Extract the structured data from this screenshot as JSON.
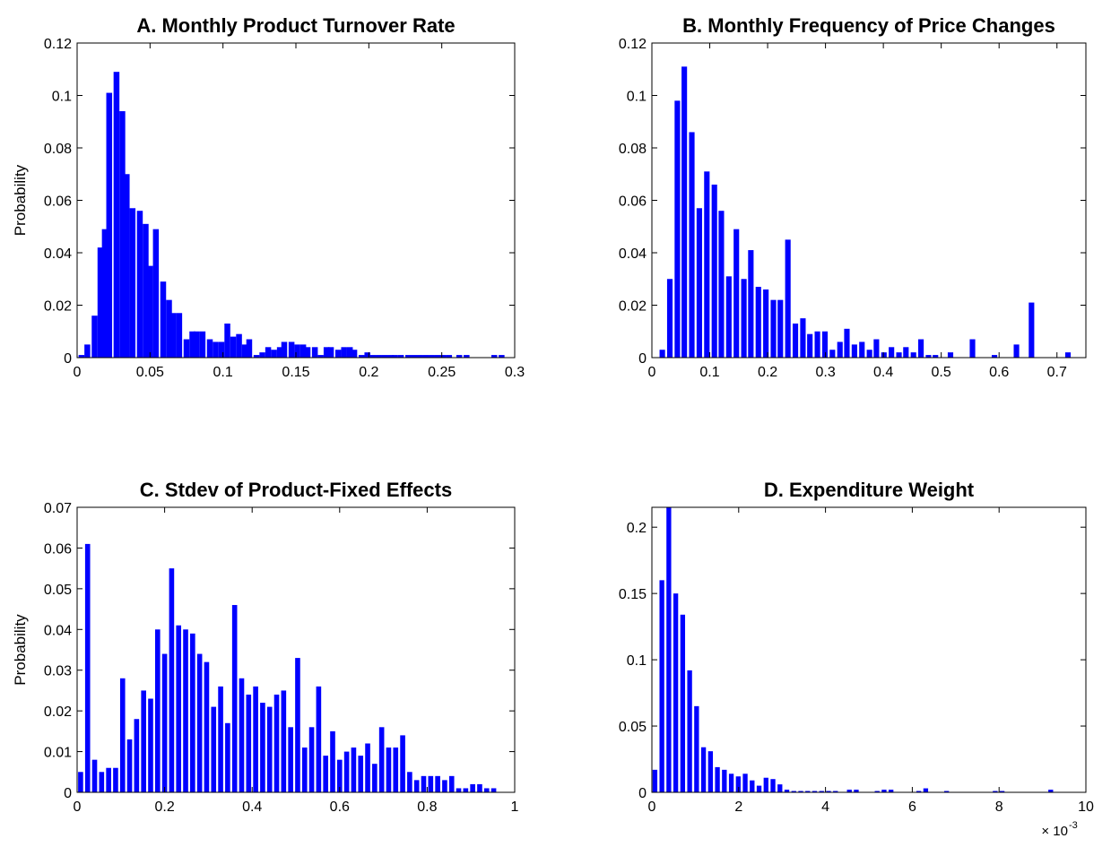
{
  "chart_data": [
    {
      "type": "bar",
      "title": "A. Monthly Product Turnover Rate",
      "ylabel": "Probability",
      "xlim": [
        0,
        0.3
      ],
      "ylim": [
        0,
        0.12
      ],
      "xticks": [
        0,
        0.05,
        0.1,
        0.15,
        0.2,
        0.25,
        0.3
      ],
      "xtick_labels": [
        "0",
        "0.05",
        "0.1",
        "0.15",
        "0.2",
        "0.25",
        "0.3"
      ],
      "yticks": [
        0,
        0.02,
        0.04,
        0.06,
        0.08,
        0.1,
        0.12
      ],
      "ytick_labels": [
        "0",
        "0.02",
        "0.04",
        "0.06",
        "0.08",
        "0.1",
        "0.12"
      ],
      "bin_width": 0.004,
      "color": "#0000ff",
      "x": [
        0.003,
        0.007,
        0.012,
        0.016,
        0.019,
        0.022,
        0.027,
        0.031,
        0.034,
        0.038,
        0.043,
        0.047,
        0.05,
        0.054,
        0.059,
        0.063,
        0.066,
        0.07,
        0.075,
        0.079,
        0.082,
        0.086,
        0.091,
        0.095,
        0.099,
        0.103,
        0.107,
        0.111,
        0.115,
        0.118,
        0.123,
        0.127,
        0.131,
        0.135,
        0.139,
        0.142,
        0.147,
        0.151,
        0.155,
        0.158,
        0.163,
        0.167,
        0.171,
        0.174,
        0.179,
        0.183,
        0.187,
        0.19,
        0.195,
        0.199,
        0.203,
        0.207,
        0.211,
        0.215,
        0.218,
        0.222,
        0.227,
        0.231,
        0.235,
        0.239,
        0.243,
        0.247,
        0.251,
        0.255,
        0.262,
        0.267,
        0.286,
        0.291
      ],
      "values": [
        0.001,
        0.005,
        0.016,
        0.042,
        0.049,
        0.101,
        0.109,
        0.094,
        0.07,
        0.057,
        0.056,
        0.051,
        0.035,
        0.049,
        0.029,
        0.022,
        0.017,
        0.017,
        0.007,
        0.01,
        0.01,
        0.01,
        0.007,
        0.006,
        0.006,
        0.013,
        0.008,
        0.009,
        0.005,
        0.007,
        0.001,
        0.002,
        0.004,
        0.003,
        0.004,
        0.006,
        0.006,
        0.005,
        0.005,
        0.004,
        0.004,
        0.001,
        0.004,
        0.004,
        0.003,
        0.004,
        0.004,
        0.003,
        0.001,
        0.002,
        0.001,
        0.001,
        0.001,
        0.001,
        0.001,
        0.001,
        0.001,
        0.001,
        0.001,
        0.001,
        0.001,
        0.001,
        0.001,
        0.001,
        0.001,
        0.001,
        0.001,
        0.001
      ]
    },
    {
      "type": "bar",
      "title": "B. Monthly Frequency of Price Changes",
      "xlim": [
        0,
        0.75
      ],
      "ylim": [
        0,
        0.12
      ],
      "xticks": [
        0,
        0.1,
        0.2,
        0.3,
        0.4,
        0.5,
        0.6,
        0.7
      ],
      "xtick_labels": [
        "0",
        "0.1",
        "0.2",
        "0.3",
        "0.4",
        "0.5",
        "0.6",
        "0.7"
      ],
      "yticks": [
        0,
        0.02,
        0.04,
        0.06,
        0.08,
        0.1,
        0.12
      ],
      "ytick_labels": [
        "0",
        "0.02",
        "0.04",
        "0.06",
        "0.08",
        "0.1",
        "0.12"
      ],
      "bin_width": 0.0095,
      "color": "#0000ff",
      "x": [
        0.018,
        0.031,
        0.044,
        0.056,
        0.069,
        0.082,
        0.095,
        0.108,
        0.12,
        0.133,
        0.146,
        0.159,
        0.171,
        0.184,
        0.197,
        0.21,
        0.222,
        0.235,
        0.248,
        0.261,
        0.273,
        0.286,
        0.299,
        0.312,
        0.325,
        0.337,
        0.35,
        0.363,
        0.376,
        0.388,
        0.401,
        0.414,
        0.427,
        0.439,
        0.452,
        0.465,
        0.478,
        0.49,
        0.516,
        0.554,
        0.592,
        0.63,
        0.656,
        0.719
      ],
      "values": [
        0.003,
        0.03,
        0.098,
        0.111,
        0.086,
        0.057,
        0.071,
        0.066,
        0.056,
        0.031,
        0.049,
        0.03,
        0.041,
        0.027,
        0.026,
        0.022,
        0.022,
        0.045,
        0.013,
        0.015,
        0.009,
        0.01,
        0.01,
        0.003,
        0.006,
        0.011,
        0.005,
        0.006,
        0.003,
        0.007,
        0.002,
        0.004,
        0.002,
        0.004,
        0.002,
        0.007,
        0.001,
        0.001,
        0.002,
        0.007,
        0.001,
        0.005,
        0.021,
        0.002
      ]
    },
    {
      "type": "bar",
      "title": "C. Stdev of Product-Fixed Effects",
      "ylabel": "Probability",
      "xlim": [
        0,
        1
      ],
      "ylim": [
        0,
        0.07
      ],
      "xticks": [
        0,
        0.2,
        0.4,
        0.6,
        0.8,
        1
      ],
      "xtick_labels": [
        "0",
        "0.2",
        "0.4",
        "0.6",
        "0.8",
        "1"
      ],
      "yticks": [
        0,
        0.01,
        0.02,
        0.03,
        0.04,
        0.05,
        0.06,
        0.07
      ],
      "ytick_labels": [
        "0",
        "0.01",
        "0.02",
        "0.03",
        "0.04",
        "0.05",
        "0.06",
        "0.07"
      ],
      "bin_width": 0.0115,
      "color": "#0000ff",
      "x": [
        0.008,
        0.024,
        0.04,
        0.056,
        0.072,
        0.088,
        0.104,
        0.12,
        0.136,
        0.152,
        0.168,
        0.184,
        0.2,
        0.216,
        0.232,
        0.248,
        0.264,
        0.28,
        0.296,
        0.312,
        0.328,
        0.344,
        0.36,
        0.376,
        0.392,
        0.408,
        0.424,
        0.44,
        0.456,
        0.472,
        0.488,
        0.504,
        0.52,
        0.536,
        0.552,
        0.568,
        0.584,
        0.6,
        0.616,
        0.632,
        0.648,
        0.664,
        0.68,
        0.696,
        0.712,
        0.728,
        0.744,
        0.76,
        0.776,
        0.792,
        0.808,
        0.824,
        0.84,
        0.856,
        0.872,
        0.888,
        0.904,
        0.92,
        0.936,
        0.952
      ],
      "values": [
        0.005,
        0.061,
        0.008,
        0.005,
        0.006,
        0.006,
        0.028,
        0.013,
        0.018,
        0.025,
        0.023,
        0.04,
        0.034,
        0.055,
        0.041,
        0.04,
        0.039,
        0.034,
        0.032,
        0.021,
        0.026,
        0.017,
        0.046,
        0.028,
        0.024,
        0.026,
        0.022,
        0.021,
        0.024,
        0.025,
        0.016,
        0.033,
        0.011,
        0.016,
        0.026,
        0.009,
        0.015,
        0.008,
        0.01,
        0.011,
        0.009,
        0.012,
        0.007,
        0.016,
        0.011,
        0.011,
        0.014,
        0.005,
        0.003,
        0.004,
        0.004,
        0.004,
        0.003,
        0.004,
        0.001,
        0.001,
        0.002,
        0.002,
        0.001,
        0.001
      ]
    },
    {
      "type": "bar",
      "title": "D. Expenditure Weight",
      "xlim": [
        0,
        0.01
      ],
      "ylim": [
        0,
        0.215
      ],
      "xticks": [
        0,
        0.002,
        0.004,
        0.006,
        0.008,
        0.01
      ],
      "xtick_labels": [
        "0",
        "2",
        "4",
        "6",
        "8",
        "10"
      ],
      "x_multiplier": "× 10",
      "x_multiplier_exponent": "-3",
      "yticks": [
        0,
        0.05,
        0.1,
        0.15,
        0.2
      ],
      "ytick_labels": [
        "0",
        "0.05",
        "0.1",
        "0.15",
        "0.2"
      ],
      "bin_width": 0.00011,
      "color": "#0000ff",
      "x": [
        7e-05,
        0.00023,
        0.00039,
        0.00055,
        0.00071,
        0.00087,
        0.00103,
        0.00119,
        0.00135,
        0.00151,
        0.00167,
        0.00183,
        0.00199,
        0.00215,
        0.00231,
        0.00247,
        0.00263,
        0.00279,
        0.00295,
        0.00311,
        0.00327,
        0.00343,
        0.00359,
        0.00375,
        0.00391,
        0.00407,
        0.00423,
        0.00455,
        0.00471,
        0.00519,
        0.00535,
        0.00551,
        0.00615,
        0.00631,
        0.00679,
        0.00791,
        0.00807,
        0.00919
      ],
      "values": [
        0.017,
        0.16,
        0.215,
        0.15,
        0.134,
        0.092,
        0.065,
        0.034,
        0.031,
        0.019,
        0.017,
        0.014,
        0.012,
        0.014,
        0.009,
        0.005,
        0.011,
        0.01,
        0.006,
        0.002,
        0.001,
        0.001,
        0.001,
        0.001,
        0.001,
        0.001,
        0.001,
        0.002,
        0.002,
        0.001,
        0.002,
        0.002,
        0.001,
        0.003,
        0.001,
        0.001,
        0.001,
        0.002
      ]
    }
  ]
}
